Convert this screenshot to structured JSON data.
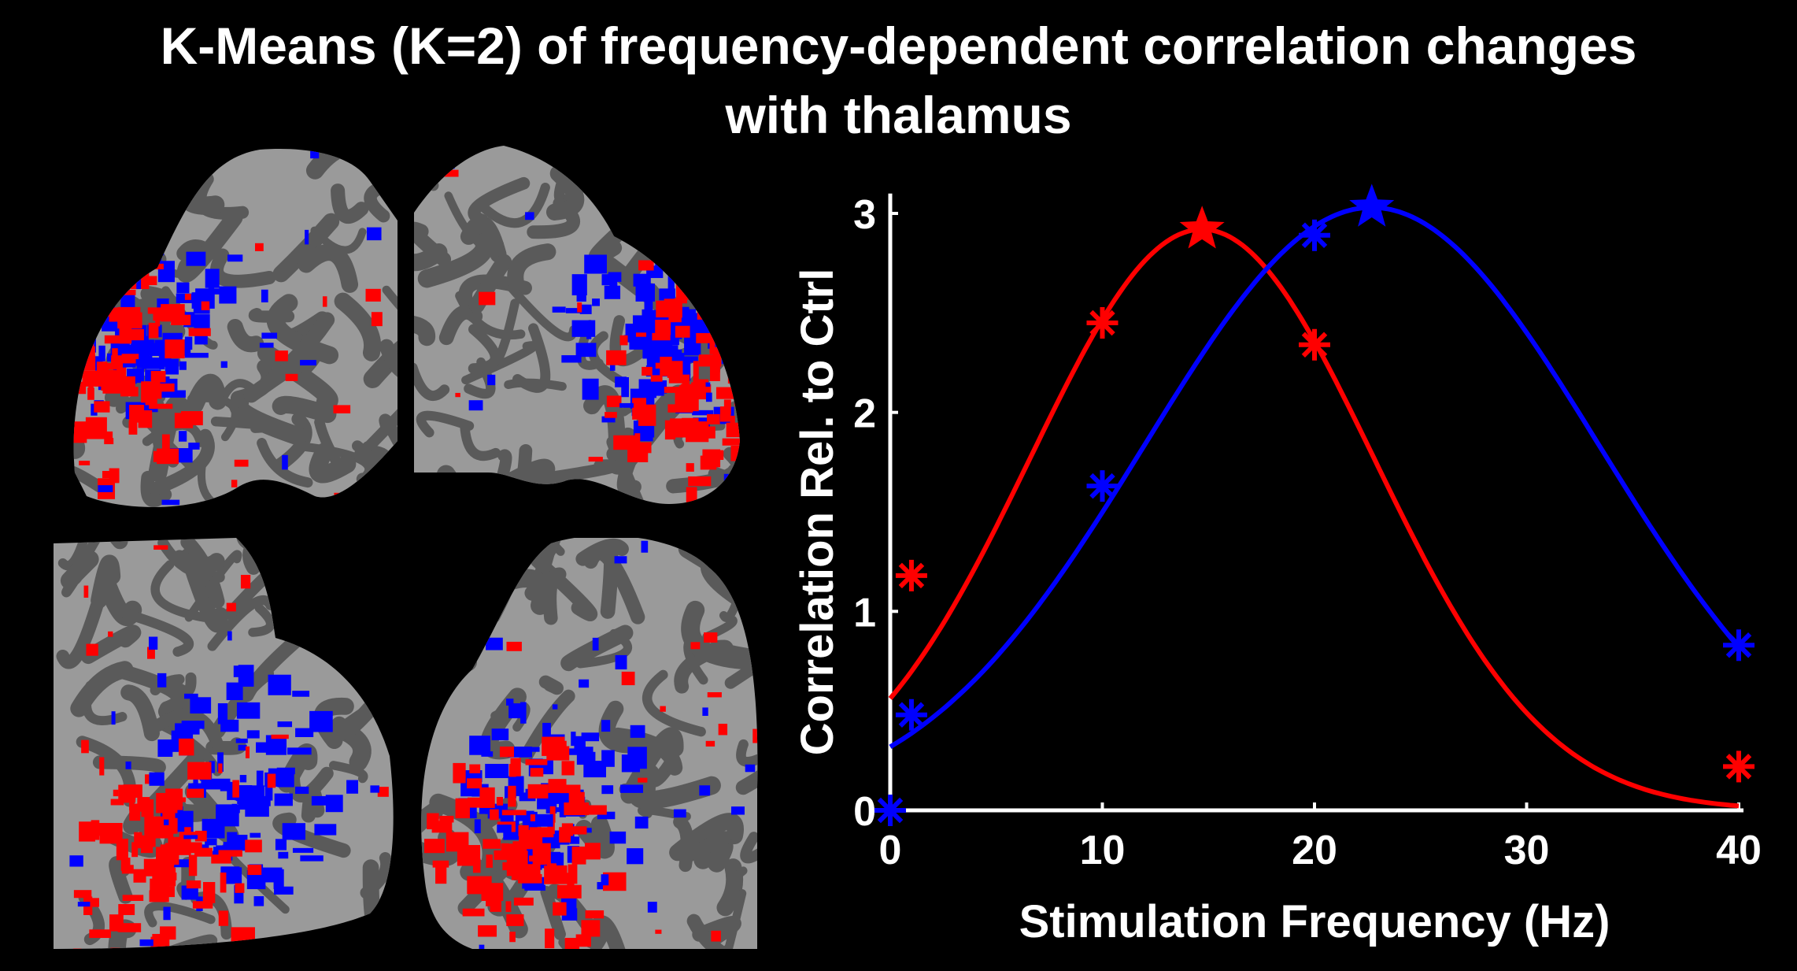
{
  "title_line1": "K-Means (K=2) of frequency-dependent correlation changes",
  "title_line2": "with thalamus",
  "colors": {
    "cluster_red": "#ff0000",
    "cluster_blue": "#0000ff",
    "background": "#000000",
    "cortex_light": "#9a9a9a",
    "cortex_dark": "#5a5a5a"
  },
  "brain_views": [
    "left-medial",
    "right-medial",
    "left-lateral",
    "right-lateral"
  ],
  "chart_data": {
    "type": "scatter",
    "title": "",
    "xlabel": "Stimulation Frequency (Hz)",
    "ylabel": "Correlation Rel. to Ctrl",
    "xlim": [
      0,
      40
    ],
    "ylim": [
      0,
      3.1
    ],
    "xticks": [
      0,
      10,
      20,
      30,
      40
    ],
    "yticks": [
      0,
      1,
      2,
      3
    ],
    "grid": false,
    "legend": "none",
    "series": [
      {
        "color": "#ff0000",
        "marker": "asterisk",
        "points": [
          [
            1,
            1.18
          ],
          [
            10,
            2.45
          ],
          [
            20,
            2.34
          ],
          [
            40,
            0.22
          ]
        ],
        "peak": [
          14.7,
          2.92
        ],
        "fit": {
          "kind": "gaussian",
          "amplitude": 2.92,
          "mean": 14.7,
          "sigma": 8.1
        }
      },
      {
        "color": "#0000ff",
        "marker": "asterisk",
        "points": [
          [
            0,
            0
          ],
          [
            1,
            0.48
          ],
          [
            10,
            1.63
          ],
          [
            20,
            2.89
          ],
          [
            40,
            0.83
          ]
        ],
        "peak": [
          22.7,
          3.03
        ],
        "fit": {
          "kind": "gaussian",
          "amplitude": 3.03,
          "mean": 22.7,
          "sigma": 10.7
        }
      }
    ]
  }
}
